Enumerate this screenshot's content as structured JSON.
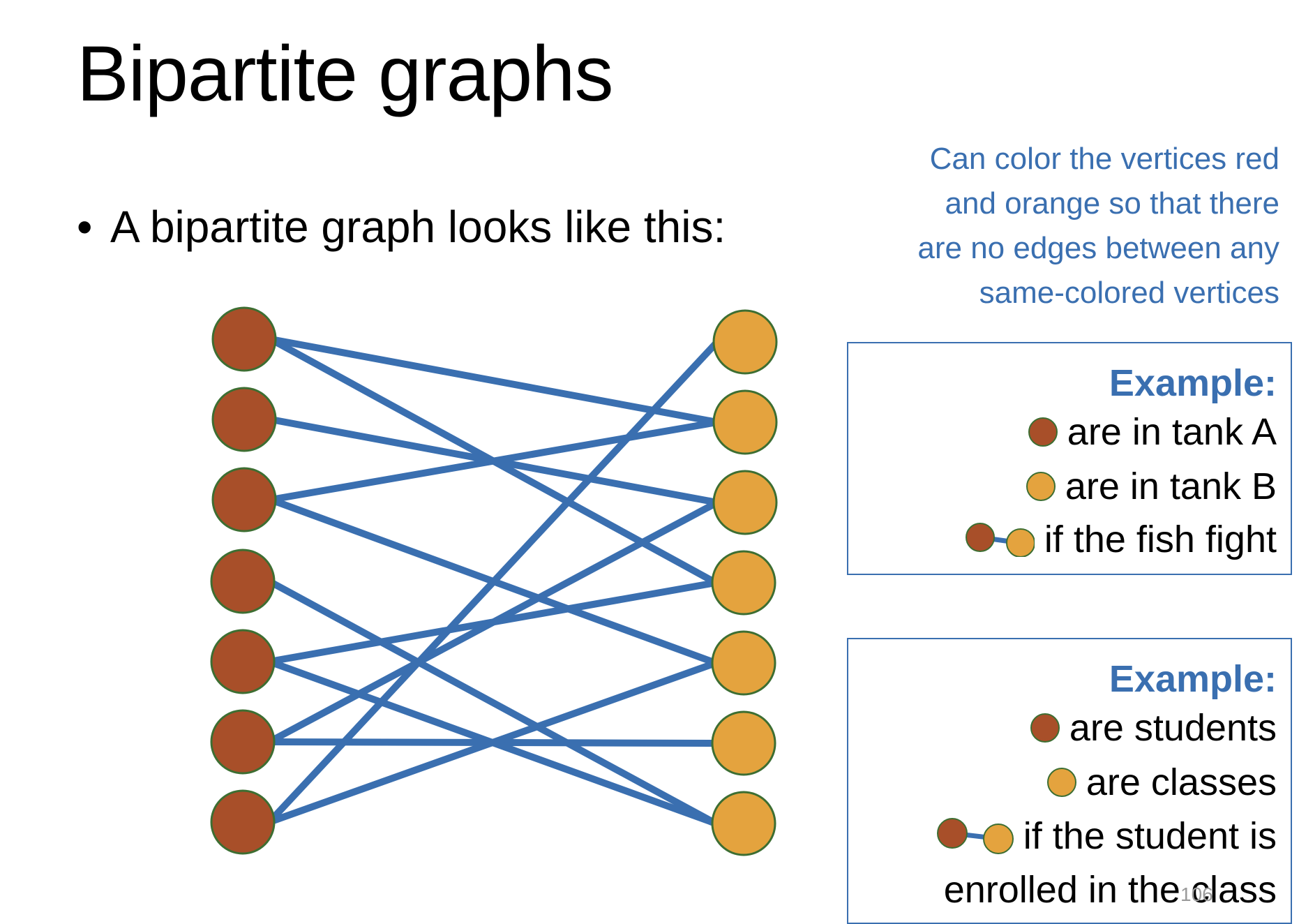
{
  "title": "Bipartite graphs",
  "bullet": {
    "mark": "•",
    "text": "A bipartite graph looks like this:"
  },
  "side_note": {
    "lines": [
      "Can color the vertices red",
      "and orange so that there",
      "are no edges between any",
      "same-colored vertices"
    ]
  },
  "colors": {
    "red_vertex": "#a84f29",
    "orange_vertex": "#e4a33e",
    "vertex_outline": "#3d6e32",
    "edge": "#3a6fb0",
    "accent_text": "#3a6fb0"
  },
  "graph": {
    "left_count": 7,
    "right_count": 7,
    "edges": [
      [
        0,
        1
      ],
      [
        0,
        3
      ],
      [
        1,
        2
      ],
      [
        2,
        1
      ],
      [
        2,
        4
      ],
      [
        3,
        6
      ],
      [
        4,
        3
      ],
      [
        4,
        6
      ],
      [
        5,
        2
      ],
      [
        5,
        5
      ],
      [
        6,
        0
      ],
      [
        6,
        4
      ]
    ]
  },
  "example1": {
    "heading": "Example:",
    "red_label": "are in tank A",
    "orange_label": "are in tank B",
    "edge_label": "if the fish fight"
  },
  "example2": {
    "heading": "Example:",
    "red_label": "are students",
    "orange_label": "are classes",
    "edge_label": "if the student is",
    "edge_label_2": "enrolled in the class"
  },
  "page_number": "106"
}
